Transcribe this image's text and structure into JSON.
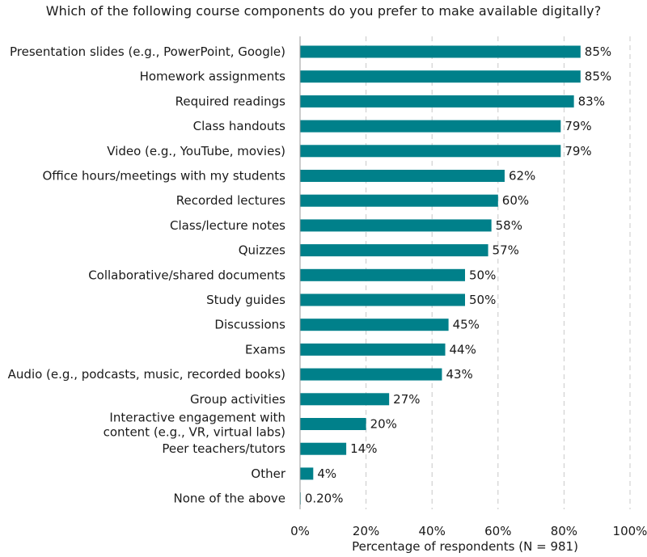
{
  "chart_data": {
    "type": "bar",
    "orientation": "horizontal",
    "title": "Which of the following course components do you prefer to make available digitally?",
    "xlabel": "Percentage of respondents (N = 981)",
    "ylabel": "",
    "xlim": [
      0,
      100
    ],
    "x_ticks": [
      "0%",
      "20%",
      "40%",
      "60%",
      "80%",
      "100%"
    ],
    "x_tick_values": [
      0,
      20,
      40,
      60,
      80,
      100
    ],
    "grid": "vertical dashed",
    "bar_color": "#00808a",
    "categories": [
      "Presentation slides (e.g., PowerPoint, Google)",
      "Homework assignments",
      "Required readings",
      "Class handouts",
      "Video (e.g., YouTube, movies)",
      "Office hours/meetings with my students",
      "Recorded lectures",
      "Class/lecture notes",
      "Quizzes",
      "Collaborative/shared documents",
      "Study guides",
      "Discussions",
      "Exams",
      "Audio (e.g., podcasts, music, recorded books)",
      "Group activities",
      "Interactive engagement with content (e.g., VR, virtual labs)",
      "Peer teachers/tutors",
      "Other",
      "None of the above"
    ],
    "category_lines": [
      [
        "Presentation slides (e.g., PowerPoint, Google)"
      ],
      [
        "Homework assignments"
      ],
      [
        "Required readings"
      ],
      [
        "Class handouts"
      ],
      [
        "Video (e.g., YouTube, movies)"
      ],
      [
        "Office hours/meetings with my students"
      ],
      [
        "Recorded lectures"
      ],
      [
        "Class/lecture notes"
      ],
      [
        "Quizzes"
      ],
      [
        "Collaborative/shared documents"
      ],
      [
        "Study guides"
      ],
      [
        "Discussions"
      ],
      [
        "Exams"
      ],
      [
        "Audio (e.g., podcasts, music, recorded books)"
      ],
      [
        "Group activities"
      ],
      [
        "Interactive engagement with",
        "content (e.g., VR, virtual labs)"
      ],
      [
        "Peer teachers/tutors"
      ],
      [
        "Other"
      ],
      [
        "None of the above"
      ]
    ],
    "values": [
      85,
      85,
      83,
      79,
      79,
      62,
      60,
      58,
      57,
      50,
      50,
      45,
      44,
      43,
      27,
      20,
      14,
      4,
      0.2
    ],
    "value_labels": [
      "85%",
      "85%",
      "83%",
      "79%",
      "79%",
      "62%",
      "60%",
      "58%",
      "57%",
      "50%",
      "50%",
      "45%",
      "44%",
      "43%",
      "27%",
      "20%",
      "14%",
      "4%",
      "0.20%"
    ]
  }
}
